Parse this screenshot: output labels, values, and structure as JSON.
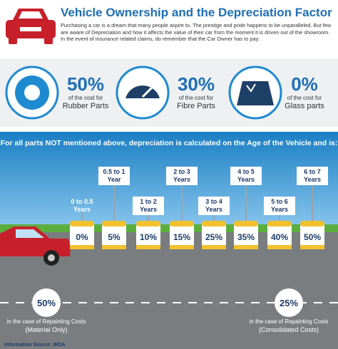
{
  "header": {
    "title": "Vehicle Ownership and the Depreciation Factor",
    "text": "Purchasing a car is a dream that many people aspire to. The prestige and pride happens to be unparalleled. But few are aware of Depreciation and how it affects the value of their car from the moment it is driven out of the showroom. In the event of insurance related claims, do remember that the Car Owner has to pay:"
  },
  "parts": [
    {
      "percent": "50%",
      "caption": "of the cost for",
      "name": "Rubber Parts"
    },
    {
      "percent": "30%",
      "caption": "of the cost for",
      "name": "Fibre Parts"
    },
    {
      "percent": "0%",
      "caption": "of the cost for",
      "name": "Glass parts"
    }
  ],
  "age_intro": "For all parts NOT mentioned above, depreciation is calculated on the Age of the Vehicle and is:",
  "ages": [
    {
      "range": "0 to 0.5",
      "unit": "Years",
      "rate": "0%"
    },
    {
      "range": "0.5 to 1",
      "unit": "Year",
      "rate": "5%"
    },
    {
      "range": "1 to 2",
      "unit": "Years",
      "rate": "10%"
    },
    {
      "range": "2 to 3",
      "unit": "Years",
      "rate": "15%"
    },
    {
      "range": "3 to 4",
      "unit": "Years",
      "rate": "25%"
    },
    {
      "range": "4 to 5",
      "unit": "Years",
      "rate": "35%"
    },
    {
      "range": "5 to 6",
      "unit": "Years",
      "rate": "40%"
    },
    {
      "range": "6 to 7",
      "unit": "Years",
      "rate": "50%"
    }
  ],
  "repainting": [
    {
      "percent": "50%",
      "caption": "in the case of Repainting Costs",
      "note": "(Material Only)"
    },
    {
      "percent": "25%",
      "caption": "in the case of Repainting Costs",
      "note": "(Consolidated Costs)"
    }
  ],
  "source": "Information Source: IRDA"
}
